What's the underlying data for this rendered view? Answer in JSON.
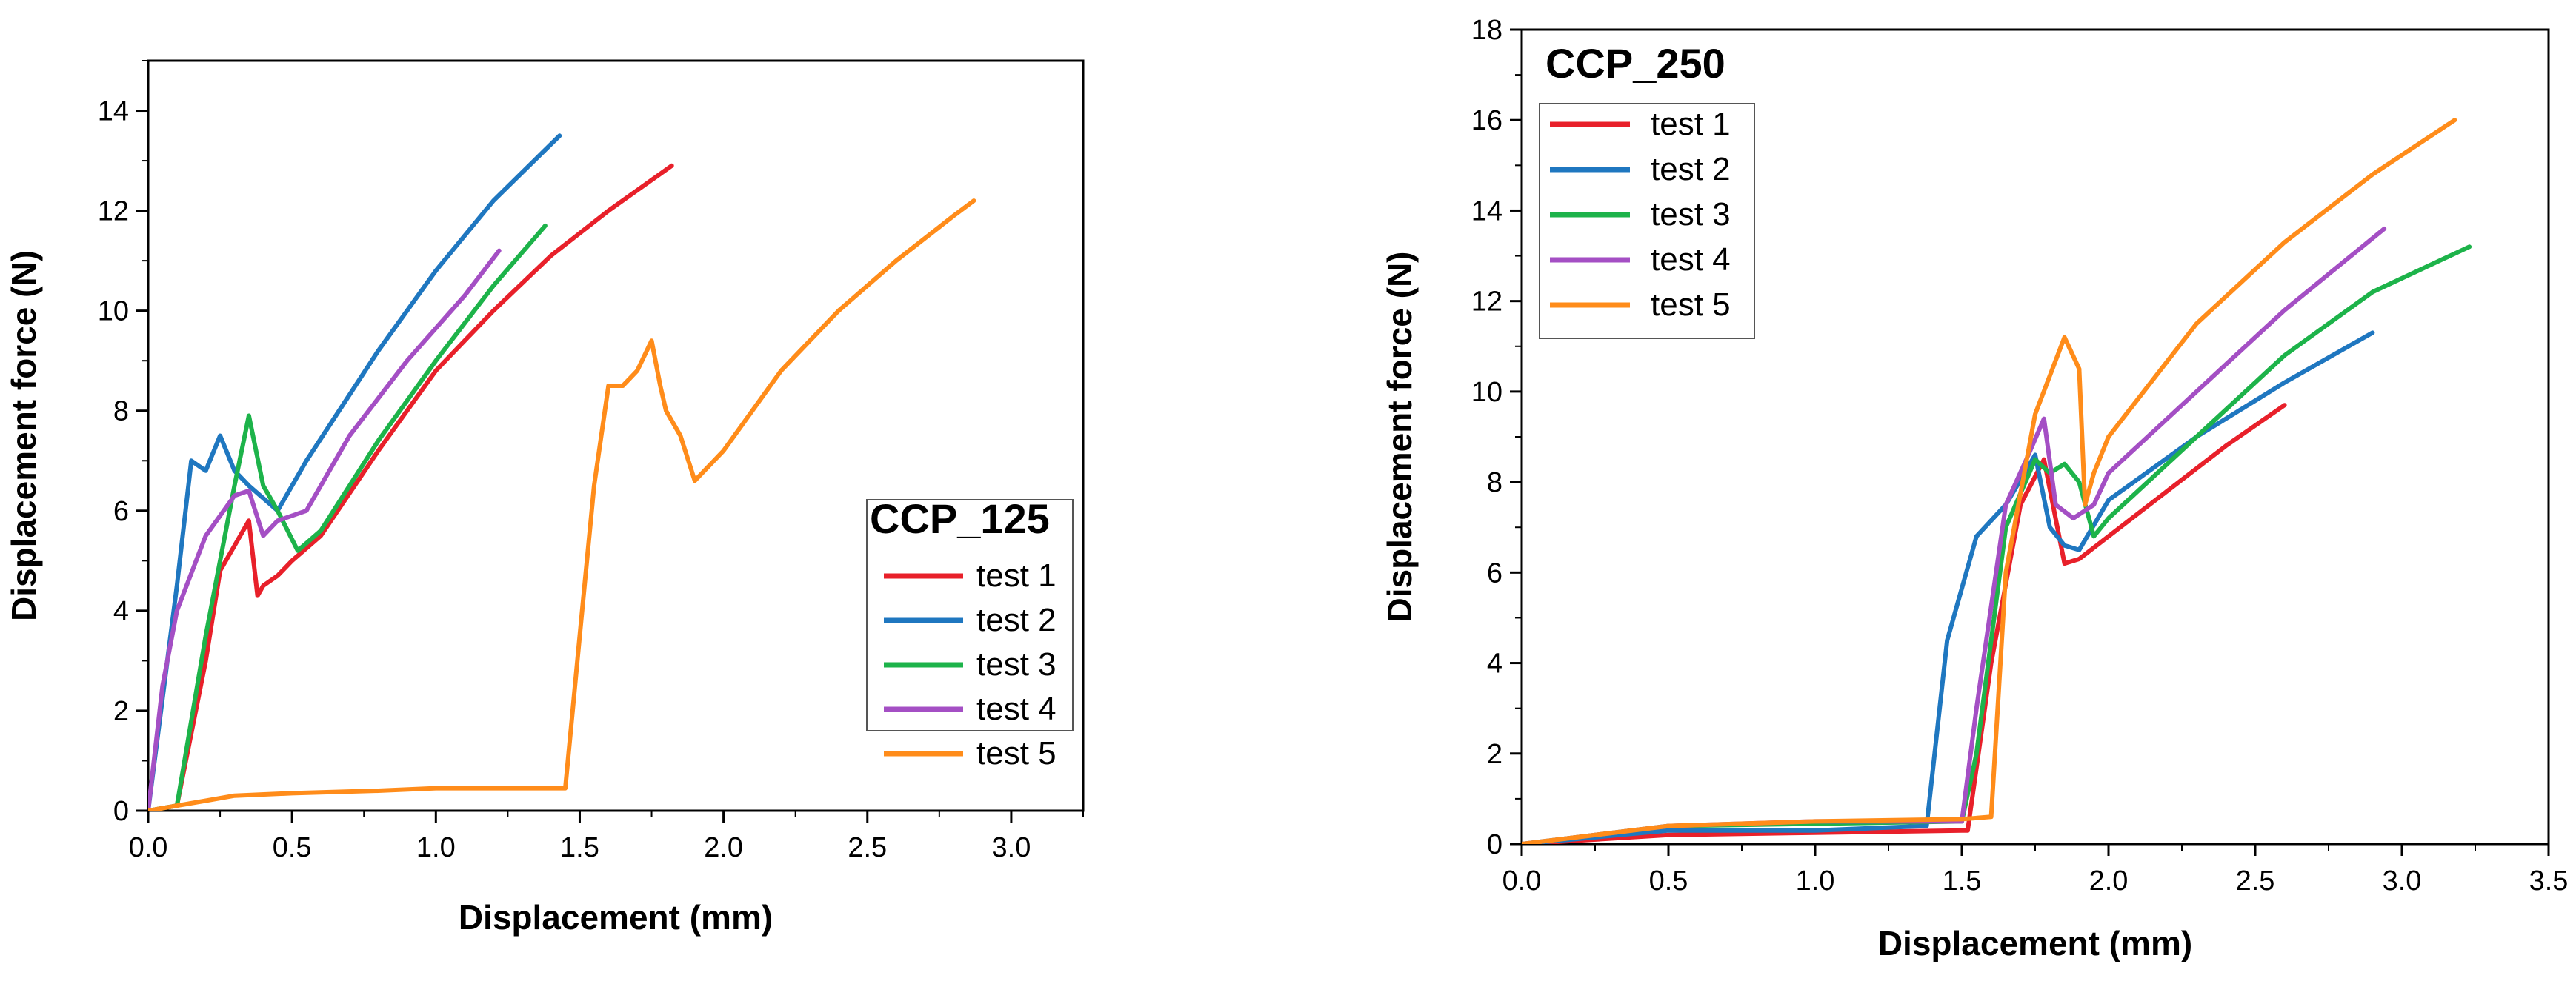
{
  "chart_data": [
    {
      "type": "line",
      "title": "CCP_125",
      "xlabel": "Displacement (mm)",
      "ylabel": "Displacement force (N)",
      "xlim": [
        0,
        3.25
      ],
      "ylim": [
        0,
        15
      ],
      "xticks": [
        0.0,
        0.5,
        1.0,
        1.5,
        2.0,
        2.5,
        3.0
      ],
      "yticks": [
        0,
        2,
        4,
        6,
        8,
        10,
        12,
        14
      ],
      "xtick_labels": [
        "0.0",
        "0.5",
        "1.0",
        "1.5",
        "2.0",
        "2.5",
        "3.0"
      ],
      "ytick_labels": [
        "0",
        "2",
        "4",
        "6",
        "8",
        "10",
        "12",
        "14"
      ],
      "legend_position": "bottom-right",
      "series": [
        {
          "name": "test 1",
          "color": "#e8202a",
          "x": [
            0.0,
            0.1,
            0.2,
            0.25,
            0.3,
            0.35,
            0.38,
            0.4,
            0.45,
            0.5,
            0.6,
            0.8,
            1.0,
            1.2,
            1.4,
            1.6,
            1.82
          ],
          "y": [
            0.0,
            0.1,
            3.0,
            4.8,
            5.3,
            5.8,
            4.3,
            4.5,
            4.7,
            5.0,
            5.5,
            7.2,
            8.8,
            10.0,
            11.1,
            12.0,
            12.9
          ]
        },
        {
          "name": "test 2",
          "color": "#1f77c0",
          "x": [
            0.0,
            0.1,
            0.15,
            0.2,
            0.25,
            0.3,
            0.35,
            0.45,
            0.55,
            0.8,
            1.0,
            1.2,
            1.43
          ],
          "y": [
            0.0,
            4.5,
            7.0,
            6.8,
            7.5,
            6.8,
            6.5,
            6.0,
            7.0,
            9.2,
            10.8,
            12.2,
            13.5
          ]
        },
        {
          "name": "test 3",
          "color": "#1db34a",
          "x": [
            0.0,
            0.1,
            0.2,
            0.25,
            0.3,
            0.35,
            0.4,
            0.45,
            0.52,
            0.6,
            0.8,
            1.0,
            1.2,
            1.38
          ],
          "y": [
            0.0,
            0.1,
            3.5,
            5.0,
            6.5,
            7.9,
            6.5,
            6.0,
            5.2,
            5.6,
            7.4,
            9.0,
            10.5,
            11.7
          ]
        },
        {
          "name": "test 4",
          "color": "#a44fc4",
          "x": [
            0.0,
            0.05,
            0.1,
            0.2,
            0.3,
            0.35,
            0.4,
            0.45,
            0.55,
            0.7,
            0.9,
            1.1,
            1.22
          ],
          "y": [
            0.0,
            2.5,
            4.0,
            5.5,
            6.3,
            6.4,
            5.5,
            5.8,
            6.0,
            7.5,
            9.0,
            10.3,
            11.2
          ]
        },
        {
          "name": "test 5",
          "color": "#ff8c1a",
          "x": [
            0.0,
            0.1,
            0.2,
            0.3,
            0.5,
            0.8,
            1.0,
            1.2,
            1.45,
            1.5,
            1.55,
            1.6,
            1.65,
            1.7,
            1.75,
            1.78,
            1.8,
            1.85,
            1.9,
            2.0,
            2.2,
            2.25,
            2.4,
            2.6,
            2.8,
            2.87
          ],
          "y": [
            0.0,
            0.1,
            0.2,
            0.3,
            0.35,
            0.4,
            0.45,
            0.45,
            0.45,
            3.5,
            6.5,
            8.5,
            8.5,
            8.8,
            9.4,
            8.5,
            8.0,
            7.5,
            6.6,
            7.2,
            8.8,
            9.1,
            10.0,
            11.0,
            11.9,
            12.2
          ]
        }
      ]
    },
    {
      "type": "line",
      "title": "CCP_250",
      "xlabel": "Displacement (mm)",
      "ylabel": "Displacement force (N)",
      "xlim": [
        0,
        3.5
      ],
      "ylim": [
        0,
        18
      ],
      "xticks": [
        0.0,
        0.5,
        1.0,
        1.5,
        2.0,
        2.5,
        3.0,
        3.5
      ],
      "yticks": [
        0,
        2,
        4,
        6,
        8,
        10,
        12,
        14,
        16,
        18
      ],
      "xtick_labels": [
        "0.0",
        "0.5",
        "1.0",
        "1.5",
        "2.0",
        "2.5",
        "3.0",
        "3.5"
      ],
      "ytick_labels": [
        "0",
        "2",
        "4",
        "6",
        "8",
        "10",
        "12",
        "14",
        "16",
        "18"
      ],
      "legend_position": "top-left",
      "series": [
        {
          "name": "test 1",
          "color": "#e8202a",
          "x": [
            0.0,
            0.5,
            1.0,
            1.5,
            1.52,
            1.6,
            1.7,
            1.78,
            1.85,
            1.9,
            2.0,
            2.2,
            2.4,
            2.6
          ],
          "y": [
            0.0,
            0.2,
            0.25,
            0.3,
            0.3,
            4.0,
            7.5,
            8.5,
            6.2,
            6.3,
            6.8,
            7.8,
            8.8,
            9.7
          ]
        },
        {
          "name": "test 2",
          "color": "#1f77c0",
          "x": [
            0.0,
            0.5,
            1.0,
            1.38,
            1.45,
            1.55,
            1.65,
            1.75,
            1.8,
            1.85,
            1.9,
            2.0,
            2.3,
            2.6,
            2.9
          ],
          "y": [
            0.0,
            0.3,
            0.3,
            0.4,
            4.5,
            6.8,
            7.5,
            8.6,
            7.0,
            6.6,
            6.5,
            7.6,
            9.0,
            10.2,
            11.3
          ]
        },
        {
          "name": "test 3",
          "color": "#1db34a",
          "x": [
            0.0,
            0.5,
            1.0,
            1.5,
            1.55,
            1.65,
            1.75,
            1.8,
            1.85,
            1.9,
            1.95,
            2.0,
            2.3,
            2.6,
            2.9,
            3.23
          ],
          "y": [
            0.0,
            0.4,
            0.45,
            0.5,
            2.0,
            7.0,
            8.5,
            8.2,
            8.4,
            8.0,
            6.8,
            7.2,
            9.0,
            10.8,
            12.2,
            13.2
          ]
        },
        {
          "name": "test 4",
          "color": "#a44fc4",
          "x": [
            0.0,
            0.5,
            1.0,
            1.5,
            1.55,
            1.65,
            1.72,
            1.78,
            1.82,
            1.88,
            1.95,
            2.0,
            2.3,
            2.6,
            2.94
          ],
          "y": [
            0.0,
            0.4,
            0.5,
            0.5,
            3.0,
            7.5,
            8.5,
            9.4,
            7.5,
            7.2,
            7.5,
            8.2,
            10.0,
            11.8,
            13.6
          ]
        },
        {
          "name": "test 5",
          "color": "#ff8c1a",
          "x": [
            0.0,
            0.5,
            1.0,
            1.5,
            1.6,
            1.65,
            1.75,
            1.85,
            1.9,
            1.92,
            1.95,
            2.0,
            2.3,
            2.6,
            2.9,
            3.18
          ],
          "y": [
            0.0,
            0.4,
            0.5,
            0.55,
            0.6,
            6.0,
            9.5,
            11.2,
            10.5,
            7.5,
            8.2,
            9.0,
            11.5,
            13.3,
            14.8,
            16.0
          ]
        }
      ]
    }
  ]
}
